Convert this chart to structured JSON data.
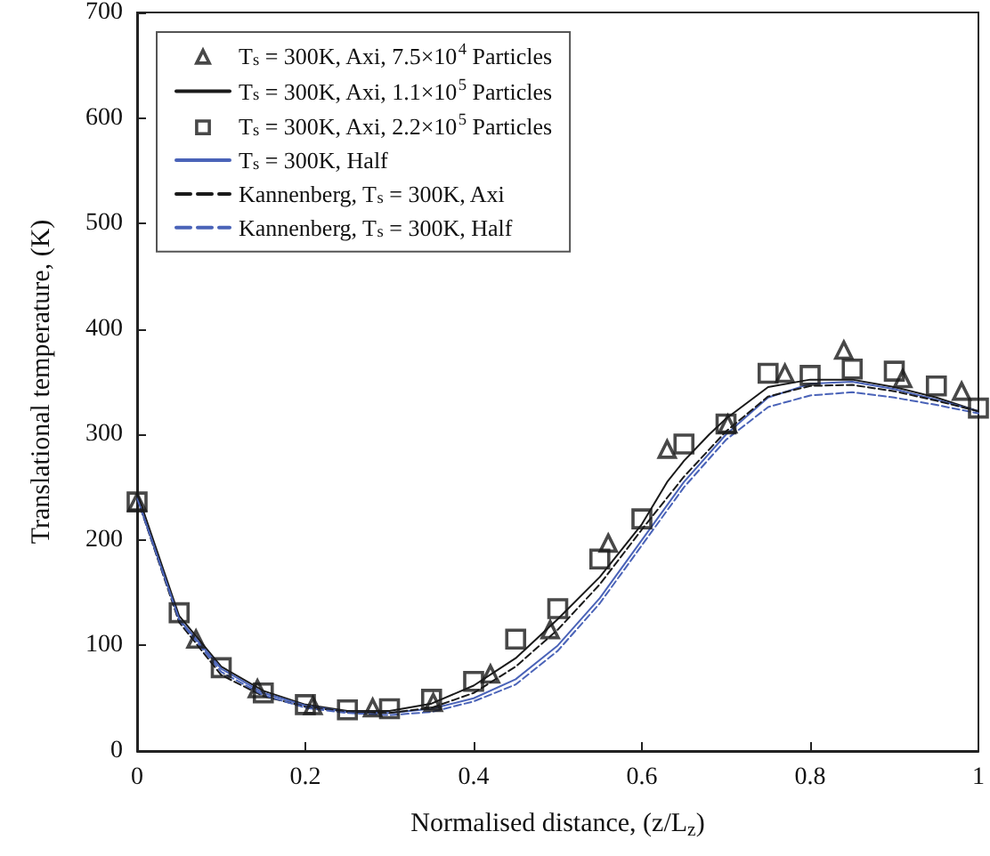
{
  "chart_data": {
    "type": "line",
    "xlabel": "Normalised distance, (z/L$_{z}$)",
    "ylabel": "Translational temperature, (K)",
    "xlim": [
      0,
      1
    ],
    "xticks": [
      0,
      0.2,
      0.4,
      0.6,
      0.8,
      1
    ],
    "ylim": [
      0,
      700
    ],
    "yticks": [
      0,
      100,
      200,
      300,
      400,
      500,
      600,
      700
    ],
    "grid": false,
    "legend": "top left",
    "series": [
      {
        "name": "T$_{s}$ = 300K, Axi, 7.5×10$^{4}$ Particles",
        "type": "scatter",
        "marker": "triangle",
        "color": "#1a1a1a",
        "x": [
          0,
          0.07,
          0.143,
          0.209,
          0.28,
          0.352,
          0.42,
          0.491,
          0.56,
          0.63,
          0.702,
          0.77,
          0.84,
          0.91,
          0.98
        ],
        "values": [
          236,
          106,
          59,
          43,
          41,
          46,
          73,
          115,
          197,
          286,
          310,
          358,
          380,
          353,
          341
        ]
      },
      {
        "name": "T$_{s}$ = 300K, Axi, 1.1×10$^{5}$ Particles",
        "marker": "none",
        "line_style": "solid",
        "color": "#1a1a1a",
        "x": [
          0,
          0.05,
          0.1,
          0.15,
          0.2,
          0.25,
          0.3,
          0.35,
          0.4,
          0.45,
          0.5,
          0.55,
          0.6,
          0.63,
          0.65,
          0.68,
          0.7,
          0.75,
          0.8,
          0.85,
          0.9,
          0.95,
          1
        ],
        "values": [
          245,
          128,
          80,
          57,
          44,
          38,
          38,
          45,
          62,
          88,
          125,
          165,
          215,
          255,
          275,
          300,
          315,
          345,
          352,
          352,
          345,
          335,
          322
        ]
      },
      {
        "name": "T$_{s}$ = 300K, Axi, 2.2×10$^{5}$ Particles",
        "type": "scatter",
        "marker": "square",
        "color": "#1a1a1a",
        "x": [
          0,
          0.05,
          0.1,
          0.15,
          0.2,
          0.25,
          0.3,
          0.35,
          0.4,
          0.45,
          0.5,
          0.55,
          0.6,
          0.65,
          0.7,
          0.75,
          0.8,
          0.85,
          0.9,
          0.95,
          1
        ],
        "values": [
          236,
          131,
          79,
          55,
          44,
          39,
          40,
          49,
          66,
          106,
          135,
          182,
          220,
          291,
          310,
          358,
          356,
          362,
          360,
          346,
          325
        ]
      },
      {
        "name": "T$_{s}$ = 300K, Half",
        "marker": "none",
        "line_style": "solid",
        "color": "#4a63b8",
        "x": [
          0,
          0.05,
          0.1,
          0.15,
          0.2,
          0.25,
          0.3,
          0.35,
          0.4,
          0.45,
          0.5,
          0.55,
          0.6,
          0.65,
          0.7,
          0.75,
          0.8,
          0.85,
          0.9,
          0.95,
          1
        ],
        "values": [
          240,
          125,
          78,
          55,
          43,
          37,
          36,
          40,
          50,
          68,
          100,
          145,
          200,
          255,
          300,
          335,
          348,
          350,
          343,
          333,
          322
        ]
      },
      {
        "name": "Kannenberg, T$_{s}$ = 300K, Axi",
        "marker": "none",
        "line_style": "dashed",
        "color": "#1a1a1a",
        "x": [
          0,
          0.05,
          0.1,
          0.15,
          0.2,
          0.25,
          0.3,
          0.35,
          0.4,
          0.45,
          0.5,
          0.55,
          0.6,
          0.65,
          0.7,
          0.75,
          0.8,
          0.85,
          0.9,
          0.95,
          1
        ],
        "values": [
          240,
          122,
          72,
          52,
          42,
          37,
          36,
          41,
          55,
          80,
          115,
          158,
          210,
          260,
          303,
          336,
          346,
          347,
          341,
          332,
          322
        ]
      },
      {
        "name": "Kannenberg, T$_{s}$ = 300K, Half",
        "marker": "none",
        "line_style": "dashed",
        "color": "#4a63b8",
        "x": [
          0,
          0.05,
          0.1,
          0.15,
          0.2,
          0.25,
          0.3,
          0.35,
          0.4,
          0.45,
          0.5,
          0.55,
          0.6,
          0.65,
          0.7,
          0.75,
          0.8,
          0.85,
          0.9,
          0.95,
          1
        ],
        "values": [
          240,
          124,
          75,
          53,
          41,
          36,
          34,
          37,
          47,
          63,
          95,
          140,
          195,
          250,
          295,
          326,
          337,
          340,
          335,
          328,
          320
        ]
      }
    ]
  }
}
